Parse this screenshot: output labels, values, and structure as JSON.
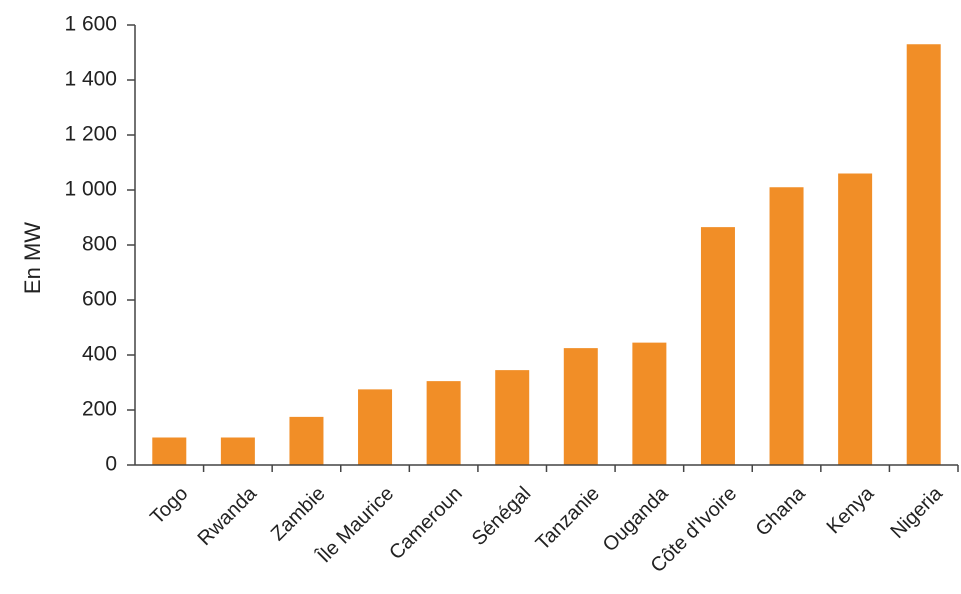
{
  "chart_data": {
    "type": "bar",
    "title": "",
    "xlabel": "",
    "ylabel": "En MW",
    "categories": [
      "Togo",
      "Rwanda",
      "Zambie",
      "Île Maurice",
      "Cameroun",
      "Sénégal",
      "Tanzanie",
      "Ouganda",
      "Côte d'Ivoire",
      "Ghana",
      "Kenya",
      "Nigeria"
    ],
    "values": [
      100,
      100,
      175,
      275,
      305,
      345,
      425,
      445,
      865,
      1010,
      1060,
      1530
    ],
    "ylim": [
      0,
      1600
    ],
    "yticks": [
      0,
      200,
      400,
      600,
      800,
      1000,
      1200,
      1400,
      1600
    ],
    "ytick_labels": [
      "0",
      "200",
      "400",
      "600",
      "800",
      "1 000",
      "1 200",
      "1 400",
      "1 600"
    ],
    "grid": false,
    "bar_color": "#f18e27",
    "axis_color": "#444444"
  }
}
